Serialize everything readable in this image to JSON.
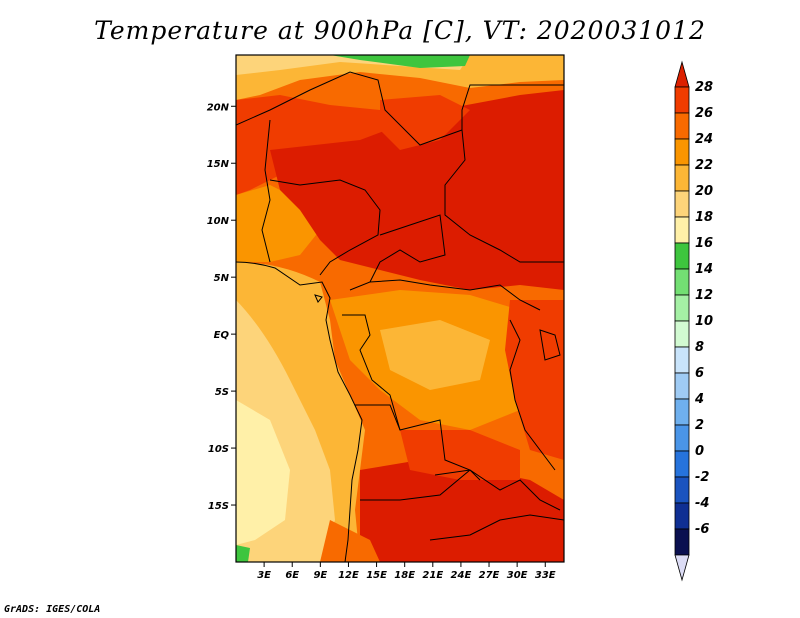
{
  "title": "Temperature at 900hPa [C], VT: 2020031012",
  "credit": "GrADS: IGES/COLA",
  "map": {
    "lat_ticks": [
      "20N",
      "15N",
      "10N",
      "5N",
      "EQ",
      "5S",
      "10S",
      "15S"
    ],
    "lon_ticks": [
      "3E",
      "6E",
      "9E",
      "12E",
      "15E",
      "18E",
      "21E",
      "24E",
      "27E",
      "30E",
      "33E"
    ],
    "lat_values": [
      20,
      15,
      10,
      5,
      0,
      -5,
      -10,
      -15
    ],
    "lon_values": [
      3,
      6,
      9,
      12,
      15,
      18,
      21,
      24,
      27,
      30,
      33
    ],
    "lat_range": [
      -20,
      24.5
    ],
    "lon_range": [
      0,
      35
    ]
  },
  "colorbar": {
    "labels": [
      "28",
      "26",
      "24",
      "22",
      "20",
      "18",
      "16",
      "14",
      "12",
      "10",
      "8",
      "6",
      "4",
      "2",
      "0",
      "-2",
      "-4",
      "-6"
    ],
    "colors": [
      "#f03c00",
      "#f86a00",
      "#fa9500",
      "#fcb636",
      "#fdd47a",
      "#fff0a8",
      "#3ec53e",
      "#73df73",
      "#a5f0a5",
      "#d2fad2",
      "#c9e4fb",
      "#9fcbf4",
      "#6fb0ee",
      "#4a95e8",
      "#2673dc",
      "#1a53bf",
      "#0f2f93",
      "#0a1050"
    ],
    "max_color": "#dc2000",
    "min_color": "#dcdcf5"
  },
  "palette": {
    "hot": "#dc1c00",
    "orange_red": "#f03c00",
    "orange": "#f86a00",
    "amber": "#fa9500",
    "gold": "#fcb636",
    "sand": "#fdd47a",
    "pale": "#fff0a8",
    "green": "#3ec53e"
  }
}
